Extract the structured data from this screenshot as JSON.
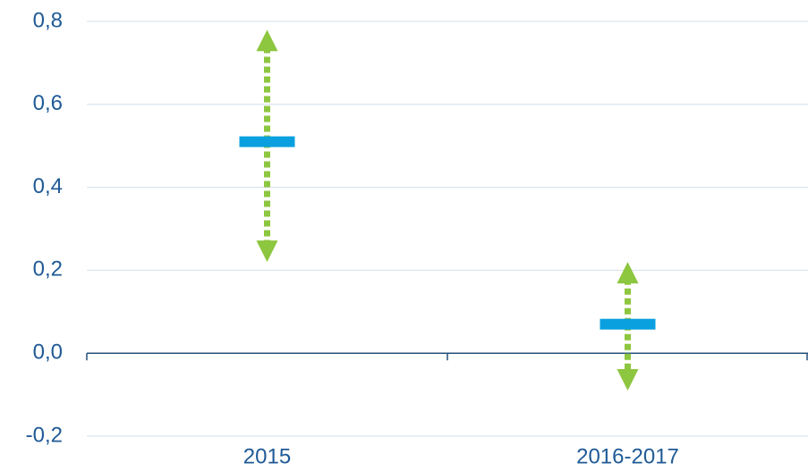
{
  "chart_data": {
    "type": "range",
    "categories": [
      "2015",
      "2016-2017"
    ],
    "values": [
      0.51,
      0.07
    ],
    "lows": [
      0.22,
      -0.09
    ],
    "highs": [
      0.78,
      0.22
    ],
    "color": "#0aa0e0",
    "range_color": "#8dc63f",
    "ylim": [
      -0.2,
      0.8
    ],
    "yticks": [
      {
        "value": -0.2,
        "label": "-0,2"
      },
      {
        "value": 0,
        "label": "0,0"
      },
      {
        "value": 0.2,
        "label": "0,2"
      },
      {
        "value": 0.4,
        "label": "0,4"
      },
      {
        "value": 0.6,
        "label": "0,6"
      },
      {
        "value": 0.8,
        "label": "0,8"
      }
    ],
    "grid": true
  }
}
